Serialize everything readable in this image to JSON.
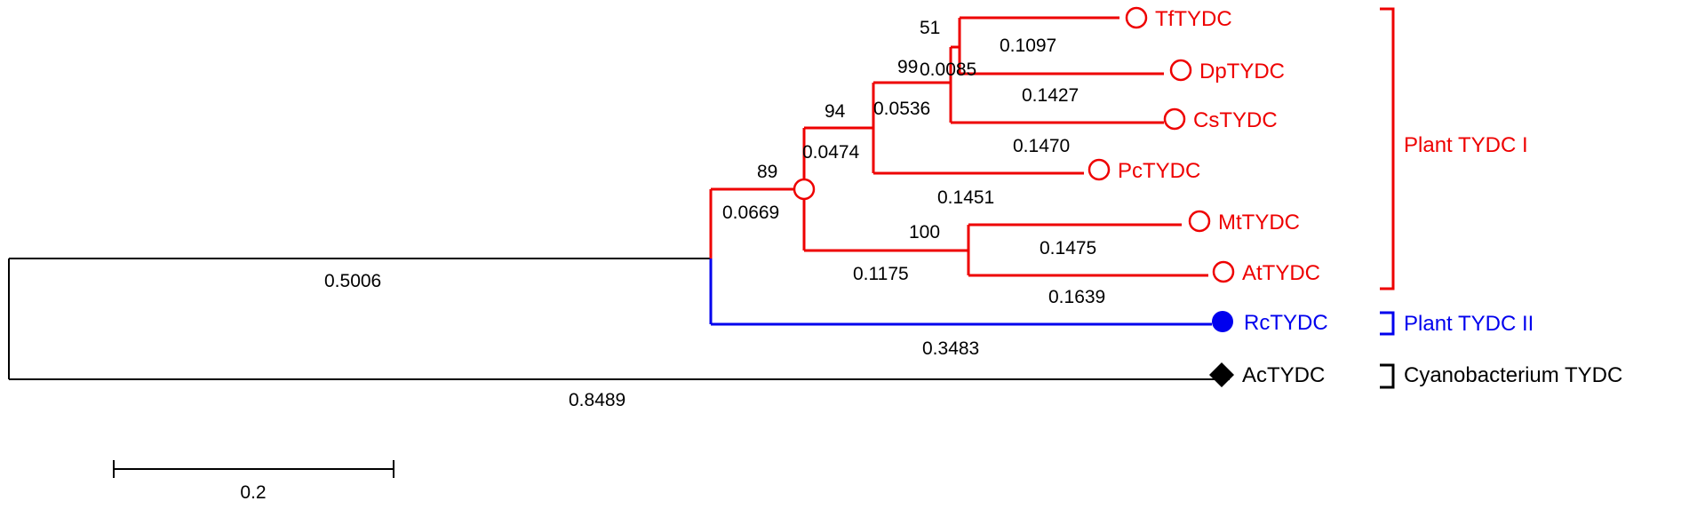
{
  "colors": {
    "plant_tydc_i": "#ee0000",
    "plant_tydc_ii": "#0000ee",
    "cyanobacterium": "#000000"
  },
  "taxa": [
    {
      "name": "TfTYDC",
      "marker": "open-circle-icon"
    },
    {
      "name": "DpTYDC",
      "marker": "open-circle-icon"
    },
    {
      "name": "CsTYDC",
      "marker": "open-circle-icon"
    },
    {
      "name": "PcTYDC",
      "marker": "open-circle-icon"
    },
    {
      "name": "MtTYDC",
      "marker": "open-circle-icon"
    },
    {
      "name": "AtTYDC",
      "marker": "open-circle-icon"
    },
    {
      "name": "RcTYDC",
      "marker": "filled-circle-icon"
    },
    {
      "name": "AcTYDC",
      "marker": "filled-diamond-icon"
    }
  ],
  "branch_lengths": {
    "tf": "0.1097",
    "dp": "0.0085",
    "cs": "0.1470",
    "cs_dp": "0.1427",
    "tf_dp_cs": "0.0536",
    "pc": "0.1451",
    "clade_a": "0.0474",
    "mt": "0.1475",
    "at": "0.1639",
    "mt_at": "0.1175",
    "plant_i": "0.0669",
    "rc": "0.3483",
    "plant": "0.5006",
    "ac": "0.8489"
  },
  "bootstrap": {
    "tf_dp": "51",
    "tf_dp_cs": "99",
    "with_pc": "94",
    "plant_i": "89",
    "mt_at": "100"
  },
  "groups": [
    {
      "name": "Plant TYDC I"
    },
    {
      "name": "Plant TYDC II"
    },
    {
      "name": "Cyanobacterium TYDC"
    }
  ],
  "scale_bar": {
    "label": "0.2"
  }
}
